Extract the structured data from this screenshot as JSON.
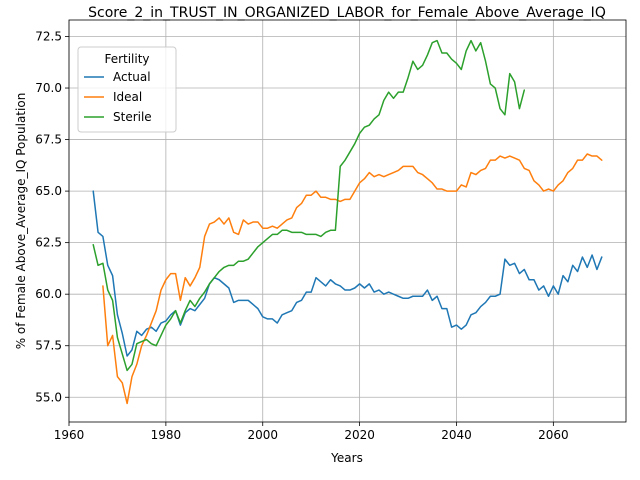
{
  "chart_data": {
    "type": "line",
    "title": "Score_2_in_TRUST_IN_ORGANIZED_LABOR_for_Female_Above_Average_IQ",
    "xlabel": "Years",
    "ylabel": "% of Female Above_Average_IQ Population",
    "xlim": [
      1960,
      2075
    ],
    "ylim": [
      53.8,
      73.3
    ],
    "xticks": [
      1960,
      1980,
      2000,
      2020,
      2040,
      2060
    ],
    "yticks": [
      55.0,
      57.5,
      60.0,
      62.5,
      65.0,
      67.5,
      70.0,
      72.5
    ],
    "grid": true,
    "legend": {
      "title": "Fertility",
      "position": "upper-left"
    },
    "series": [
      {
        "name": "Actual",
        "color": "#1f77b4",
        "x": [
          1965,
          1966,
          1967,
          1968,
          1969,
          1970,
          1971,
          1972,
          1973,
          1974,
          1975,
          1976,
          1977,
          1978,
          1979,
          1980,
          1981,
          1982,
          1983,
          1984,
          1985,
          1986,
          1987,
          1988,
          1989,
          1990,
          1991,
          1992,
          1993,
          1994,
          1995,
          1996,
          1997,
          1998,
          1999,
          2000,
          2001,
          2002,
          2003,
          2004,
          2005,
          2006,
          2007,
          2008,
          2009,
          2010,
          2011,
          2012,
          2013,
          2014,
          2015,
          2016,
          2017,
          2018,
          2019,
          2020,
          2021,
          2022,
          2023,
          2024,
          2025,
          2026,
          2027,
          2028,
          2029,
          2030,
          2031,
          2032,
          2033,
          2034,
          2035,
          2036,
          2037,
          2038,
          2039,
          2040,
          2041,
          2042,
          2043,
          2044,
          2045,
          2046,
          2047,
          2048,
          2049,
          2050,
          2051,
          2052,
          2053,
          2054,
          2055,
          2056,
          2057,
          2058,
          2059,
          2060,
          2061,
          2062,
          2063,
          2064,
          2065,
          2066,
          2067,
          2068,
          2069,
          2070
        ],
        "y": [
          65.0,
          63.0,
          62.8,
          61.4,
          60.9,
          59.0,
          58.1,
          57.0,
          57.3,
          58.2,
          58.0,
          58.3,
          58.4,
          58.2,
          58.6,
          58.7,
          59.0,
          59.2,
          58.5,
          59.1,
          59.3,
          59.2,
          59.5,
          59.8,
          60.5,
          60.8,
          60.7,
          60.5,
          60.3,
          59.6,
          59.7,
          59.7,
          59.7,
          59.5,
          59.3,
          58.9,
          58.8,
          58.8,
          58.6,
          59.0,
          59.1,
          59.2,
          59.6,
          59.7,
          60.1,
          60.1,
          60.8,
          60.6,
          60.4,
          60.7,
          60.5,
          60.4,
          60.2,
          60.2,
          60.3,
          60.5,
          60.3,
          60.5,
          60.1,
          60.2,
          60.0,
          60.1,
          60.0,
          59.9,
          59.8,
          59.8,
          59.9,
          59.9,
          59.9,
          60.2,
          59.7,
          59.9,
          59.3,
          59.3,
          58.4,
          58.5,
          58.3,
          58.5,
          59.0,
          59.1,
          59.4,
          59.6,
          59.9,
          59.9,
          60.0,
          61.7,
          61.4,
          61.5,
          61.0,
          61.2,
          60.7,
          60.7,
          60.2,
          60.4,
          59.9,
          60.4,
          60.0,
          60.9,
          60.6,
          61.4,
          61.1,
          61.8,
          61.3,
          61.9,
          61.2,
          61.8
        ]
      },
      {
        "name": "Ideal",
        "color": "#ff7f0e",
        "x": [
          1967,
          1968,
          1969,
          1970,
          1971,
          1972,
          1973,
          1974,
          1975,
          1976,
          1977,
          1978,
          1979,
          1980,
          1981,
          1982,
          1983,
          1984,
          1985,
          1986,
          1987,
          1988,
          1989,
          1990,
          1991,
          1992,
          1993,
          1994,
          1995,
          1996,
          1997,
          1998,
          1999,
          2000,
          2001,
          2002,
          2003,
          2004,
          2005,
          2006,
          2007,
          2008,
          2009,
          2010,
          2011,
          2012,
          2013,
          2014,
          2015,
          2016,
          2017,
          2018,
          2019,
          2020,
          2021,
          2022,
          2023,
          2024,
          2025,
          2026,
          2027,
          2028,
          2029,
          2030,
          2031,
          2032,
          2033,
          2034,
          2035,
          2036,
          2037,
          2038,
          2039,
          2040,
          2041,
          2042,
          2043,
          2044,
          2045,
          2046,
          2047,
          2048,
          2049,
          2050,
          2051,
          2052,
          2053,
          2054,
          2055,
          2056,
          2057,
          2058,
          2059,
          2060,
          2061,
          2062,
          2063,
          2064,
          2065,
          2066,
          2067,
          2068,
          2069,
          2070
        ],
        "y": [
          60.4,
          57.5,
          58.0,
          56.0,
          55.7,
          54.7,
          56.0,
          56.6,
          57.5,
          58.0,
          58.6,
          59.2,
          60.2,
          60.7,
          61.0,
          61.0,
          59.7,
          60.8,
          60.4,
          60.8,
          61.3,
          62.8,
          63.4,
          63.5,
          63.7,
          63.4,
          63.7,
          63.0,
          62.9,
          63.6,
          63.4,
          63.5,
          63.5,
          63.2,
          63.2,
          63.3,
          63.2,
          63.4,
          63.6,
          63.7,
          64.2,
          64.4,
          64.8,
          64.8,
          65.0,
          64.7,
          64.7,
          64.6,
          64.6,
          64.5,
          64.6,
          64.6,
          65.0,
          65.4,
          65.6,
          65.9,
          65.7,
          65.8,
          65.7,
          65.8,
          65.9,
          66.0,
          66.2,
          66.2,
          66.2,
          65.9,
          65.8,
          65.6,
          65.4,
          65.1,
          65.1,
          65.0,
          65.0,
          65.0,
          65.3,
          65.2,
          65.9,
          65.8,
          66.0,
          66.1,
          66.5,
          66.5,
          66.7,
          66.6,
          66.7,
          66.6,
          66.5,
          66.1,
          66.0,
          65.5,
          65.3,
          65.0,
          65.1,
          65.0,
          65.3,
          65.5,
          65.9,
          66.1,
          66.5,
          66.5,
          66.8,
          66.7,
          66.7,
          66.5
        ]
      },
      {
        "name": "Sterile",
        "color": "#2ca02c",
        "x": [
          1965,
          1966,
          1967,
          1968,
          1969,
          1970,
          1971,
          1972,
          1973,
          1974,
          1975,
          1976,
          1977,
          1978,
          1979,
          1980,
          1981,
          1982,
          1983,
          1984,
          1985,
          1986,
          1987,
          1988,
          1989,
          1990,
          1991,
          1992,
          1993,
          1994,
          1995,
          1996,
          1997,
          1998,
          1999,
          2000,
          2001,
          2002,
          2003,
          2004,
          2005,
          2006,
          2007,
          2008,
          2009,
          2010,
          2011,
          2012,
          2013,
          2014,
          2015,
          2016,
          2017,
          2018,
          2019,
          2020,
          2021,
          2022,
          2023,
          2024,
          2025,
          2026,
          2027,
          2028,
          2029,
          2030,
          2031,
          2032,
          2033,
          2034,
          2035,
          2036,
          2037,
          2038,
          2039,
          2040,
          2041,
          2042,
          2043,
          2044,
          2045,
          2046,
          2047,
          2048,
          2049,
          2050,
          2051,
          2052,
          2053,
          2054,
          2055
        ],
        "y": [
          62.4,
          61.4,
          61.5,
          60.2,
          59.7,
          57.9,
          57.1,
          56.3,
          56.6,
          57.6,
          57.7,
          57.8,
          57.6,
          57.5,
          58.0,
          58.5,
          58.8,
          59.2,
          58.6,
          59.2,
          59.7,
          59.4,
          59.8,
          60.1,
          60.5,
          60.8,
          61.1,
          61.3,
          61.4,
          61.4,
          61.6,
          61.6,
          61.7,
          62.0,
          62.3,
          62.5,
          62.7,
          62.9,
          62.9,
          63.1,
          63.1,
          63.0,
          63.0,
          63.0,
          62.9,
          62.9,
          62.9,
          62.8,
          63.0,
          63.1,
          63.1,
          66.2,
          66.5,
          66.9,
          67.3,
          67.8,
          68.1,
          68.2,
          68.5,
          68.7,
          69.4,
          69.8,
          69.5,
          69.8,
          69.8,
          70.5,
          71.3,
          70.9,
          71.1,
          71.6,
          72.2,
          72.3,
          71.7,
          71.7,
          71.4,
          71.2,
          70.9,
          71.8,
          72.3,
          71.8,
          72.2,
          71.3,
          70.2,
          70.0,
          69.0,
          68.7,
          70.7,
          70.3,
          69.0,
          69.9,
          null
        ]
      }
    ]
  }
}
